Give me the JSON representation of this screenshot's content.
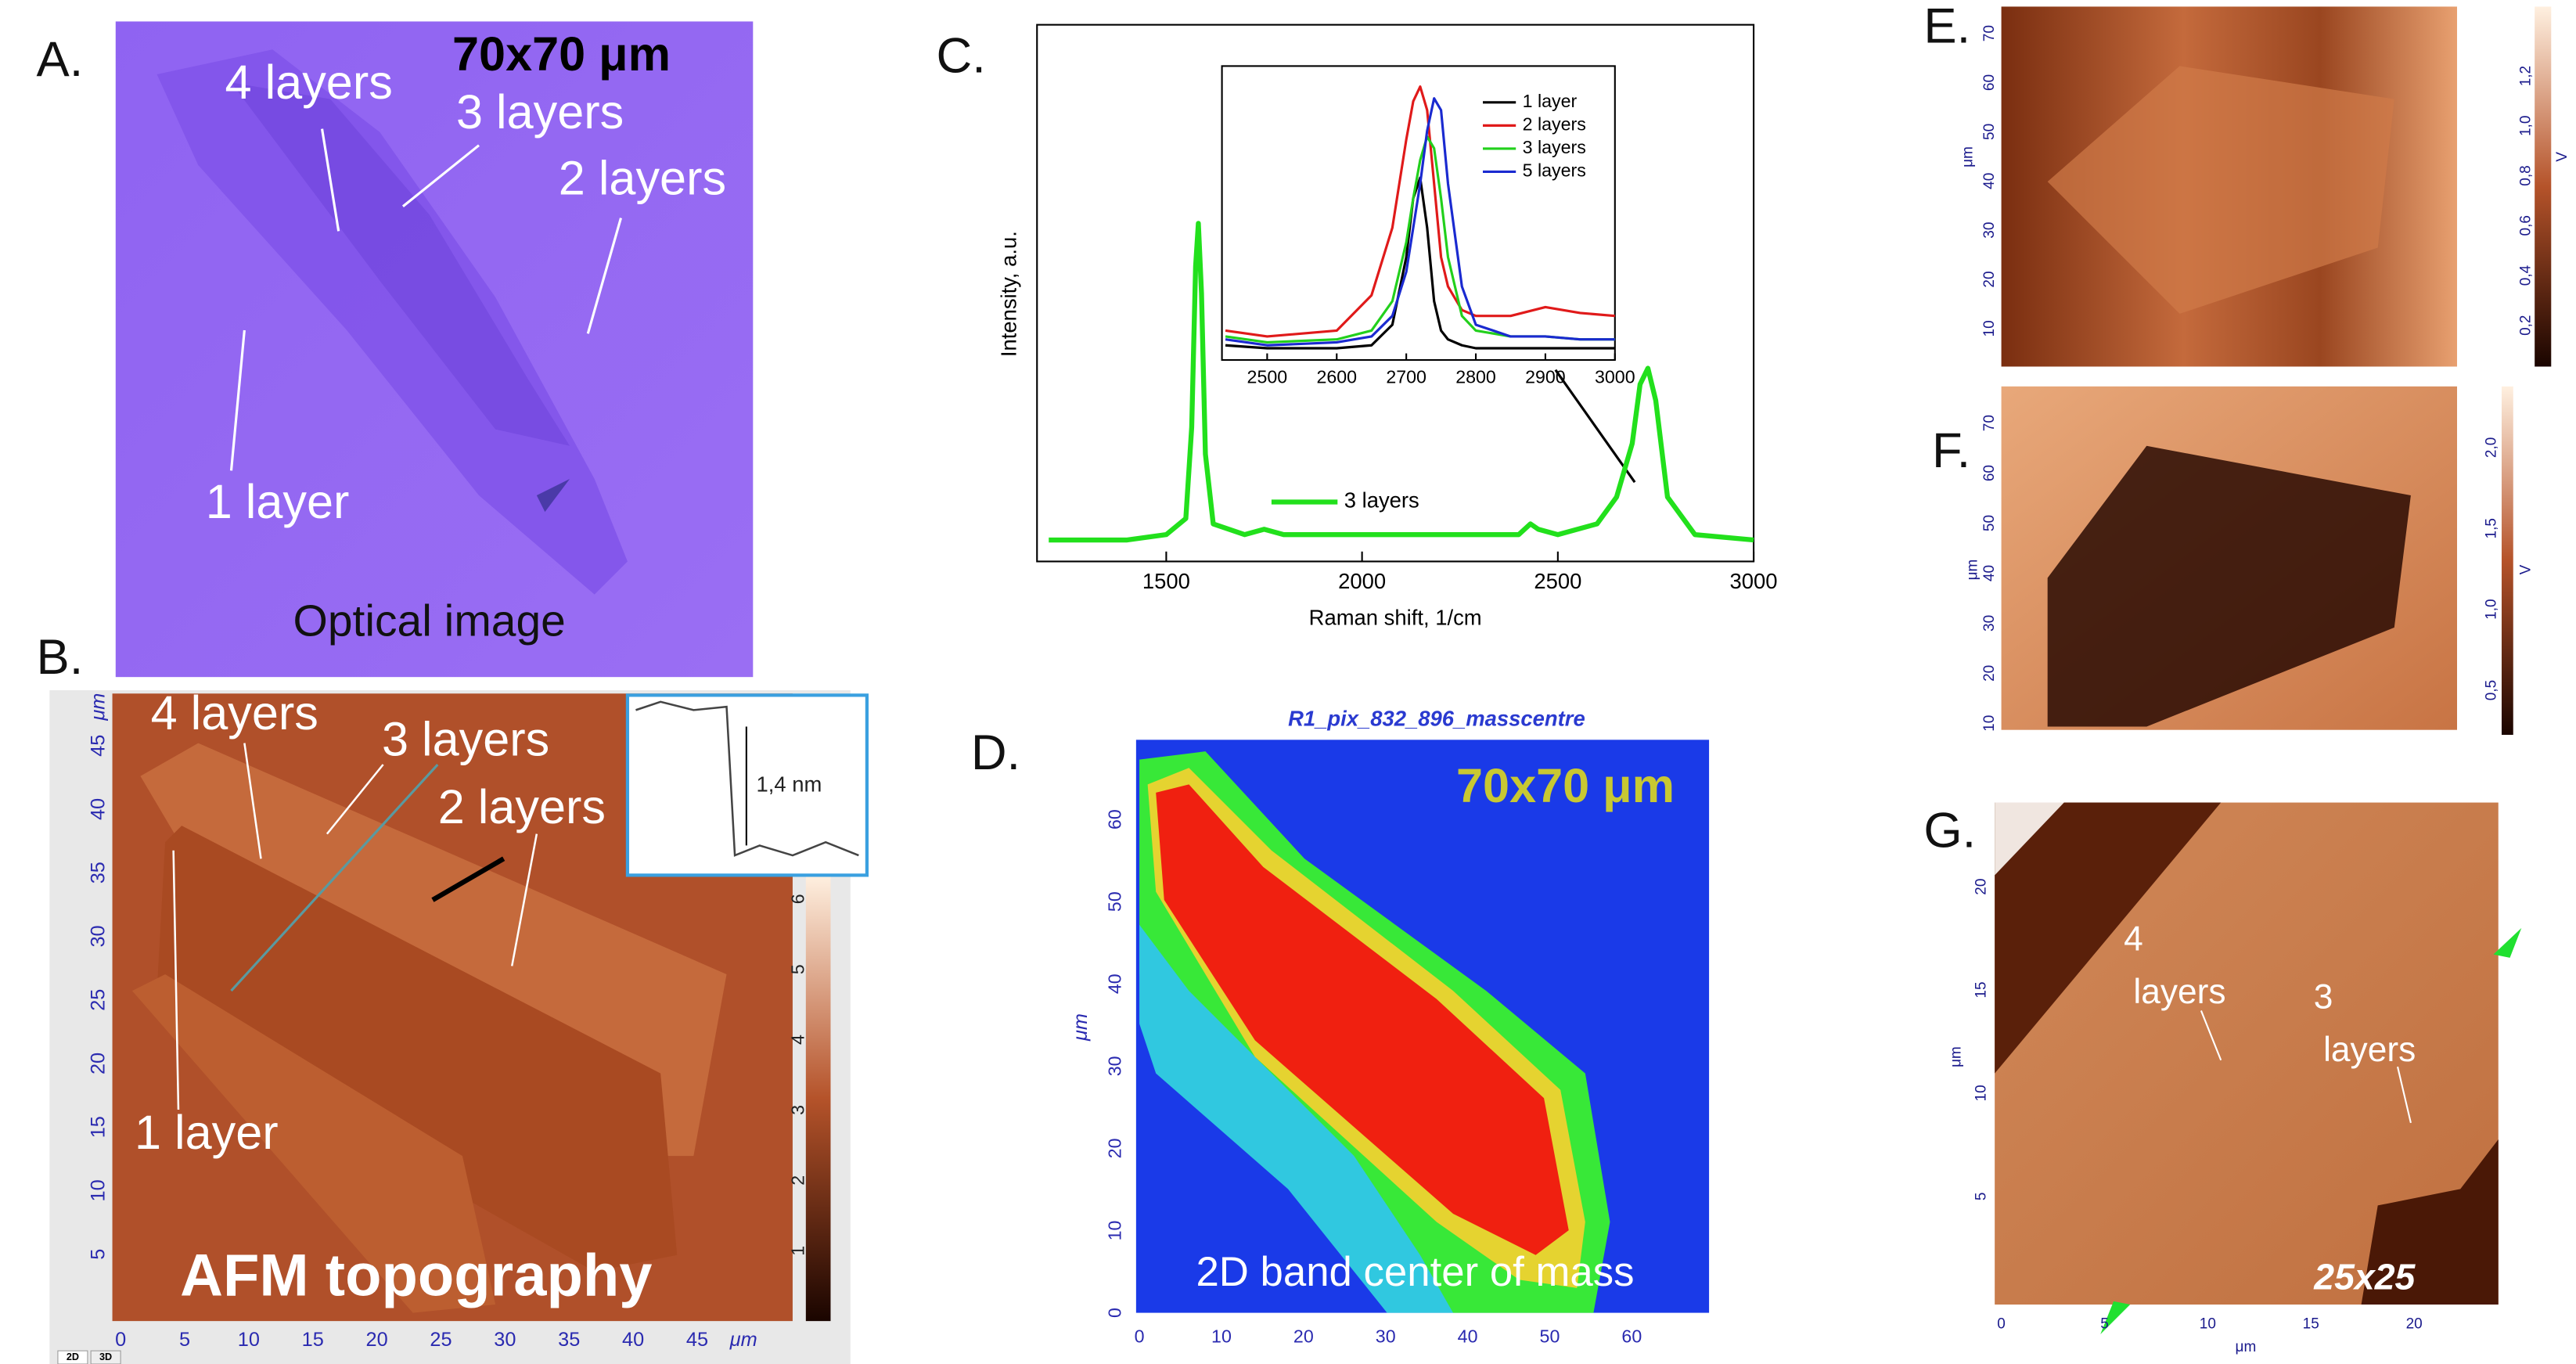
{
  "panel_labels": [
    "A.",
    "B.",
    "C.",
    "D.",
    "E.",
    "F.",
    "G."
  ],
  "panel_a": {
    "scale": "70x70 μm",
    "labels": [
      "4 layers",
      "3 layers",
      "2 layers",
      "1 layer"
    ],
    "caption": "Optical image"
  },
  "panel_b": {
    "labels": [
      "4 layers",
      "3 layers",
      "2 layers",
      "1 layer"
    ],
    "caption": "AFM topography",
    "x_ticks": [
      0,
      5,
      10,
      15,
      20,
      25,
      30,
      35,
      40,
      45
    ],
    "y_ticks": [
      5,
      10,
      15,
      20,
      25,
      30,
      35,
      40,
      45
    ],
    "unit": "μm",
    "colorbar_ticks": [
      1,
      2,
      3,
      4,
      5,
      6
    ],
    "profile_label": "1,4 nm",
    "tabs": [
      "2D",
      "3D"
    ]
  },
  "chart_data": [
    {
      "type": "line",
      "x_label": "Raman shift, 1/cm",
      "y_label": "Intensity, a.u.",
      "x": [
        1200,
        1400,
        1500,
        1550,
        1565,
        1575,
        1582,
        1590,
        1600,
        1620,
        1700,
        1750,
        1800,
        2000,
        2200,
        2400,
        2430,
        2450,
        2500,
        2600,
        2650,
        2690,
        2710,
        2730,
        2750,
        2780,
        2850,
        3000
      ],
      "series": [
        {
          "name": "3 layers",
          "color": "#22e01c",
          "values": [
            0.04,
            0.04,
            0.05,
            0.08,
            0.25,
            0.55,
            0.63,
            0.5,
            0.2,
            0.07,
            0.05,
            0.06,
            0.05,
            0.05,
            0.05,
            0.05,
            0.07,
            0.06,
            0.05,
            0.07,
            0.12,
            0.22,
            0.33,
            0.36,
            0.3,
            0.12,
            0.05,
            0.04
          ]
        }
      ],
      "xlim": [
        1170,
        3000
      ],
      "xticks": [
        1500,
        2000,
        2500,
        3000
      ],
      "ylim": [
        0,
        1
      ],
      "legend": "lower center"
    },
    {
      "type": "line",
      "x": [
        2440,
        2500,
        2600,
        2650,
        2680,
        2700,
        2710,
        2720,
        2730,
        2740,
        2750,
        2760,
        2780,
        2800,
        2850,
        2900,
        2950,
        3000
      ],
      "series": [
        {
          "name": "1 layer",
          "color": "#000000",
          "values": [
            0.05,
            0.04,
            0.04,
            0.05,
            0.12,
            0.35,
            0.55,
            0.62,
            0.45,
            0.2,
            0.1,
            0.07,
            0.05,
            0.04,
            0.04,
            0.04,
            0.04,
            0.04
          ]
        },
        {
          "name": "2 layers",
          "color": "#e01a1a",
          "values": [
            0.1,
            0.08,
            0.1,
            0.22,
            0.45,
            0.75,
            0.88,
            0.93,
            0.85,
            0.6,
            0.35,
            0.25,
            0.17,
            0.15,
            0.15,
            0.18,
            0.16,
            0.15
          ]
        },
        {
          "name": "3 layers",
          "color": "#22d01c",
          "values": [
            0.08,
            0.06,
            0.07,
            0.1,
            0.2,
            0.4,
            0.55,
            0.68,
            0.76,
            0.72,
            0.55,
            0.35,
            0.15,
            0.1,
            0.08,
            0.08,
            0.07,
            0.07
          ]
        },
        {
          "name": "5 layers",
          "color": "#1a2ad0",
          "values": [
            0.07,
            0.05,
            0.06,
            0.08,
            0.15,
            0.3,
            0.45,
            0.6,
            0.78,
            0.89,
            0.85,
            0.6,
            0.25,
            0.12,
            0.08,
            0.08,
            0.07,
            0.07
          ]
        }
      ],
      "xlim": [
        2435,
        3000
      ],
      "xticks": [
        2500,
        2600,
        2700,
        2800,
        2900,
        3000
      ],
      "ylim": [
        0,
        1
      ],
      "legend": "upper right"
    }
  ],
  "panel_d": {
    "title": "R1_pix_832_896_masscentre",
    "scale": "70x70 μm",
    "caption": "2D band center of mass",
    "x_ticks": [
      0,
      10,
      20,
      30,
      40,
      50,
      60
    ],
    "y_ticks": [
      0,
      10,
      20,
      30,
      40,
      50,
      60
    ],
    "y_label": "μm"
  },
  "panel_e": {
    "y_ticks": [
      10,
      20,
      30,
      40,
      50,
      60,
      70
    ],
    "y_label": "μm",
    "colorbar_ticks": [
      "0,2",
      "0,4",
      "0,6",
      "0,8",
      "1,0",
      "1,2"
    ],
    "colorbar_label": "V"
  },
  "panel_f": {
    "y_ticks": [
      10,
      20,
      30,
      40,
      50,
      60,
      70
    ],
    "y_label": "μm",
    "colorbar_ticks": [
      "0,5",
      "1,0",
      "1,5",
      "2,0"
    ],
    "colorbar_label": "V"
  },
  "panel_g": {
    "x_ticks": [
      0,
      5,
      10,
      15,
      20
    ],
    "y_ticks": [
      5,
      10,
      15,
      20
    ],
    "unit": "μm",
    "labels": [
      [
        "4",
        "layers"
      ],
      [
        "3",
        "layers"
      ]
    ],
    "scale": "25x25"
  }
}
